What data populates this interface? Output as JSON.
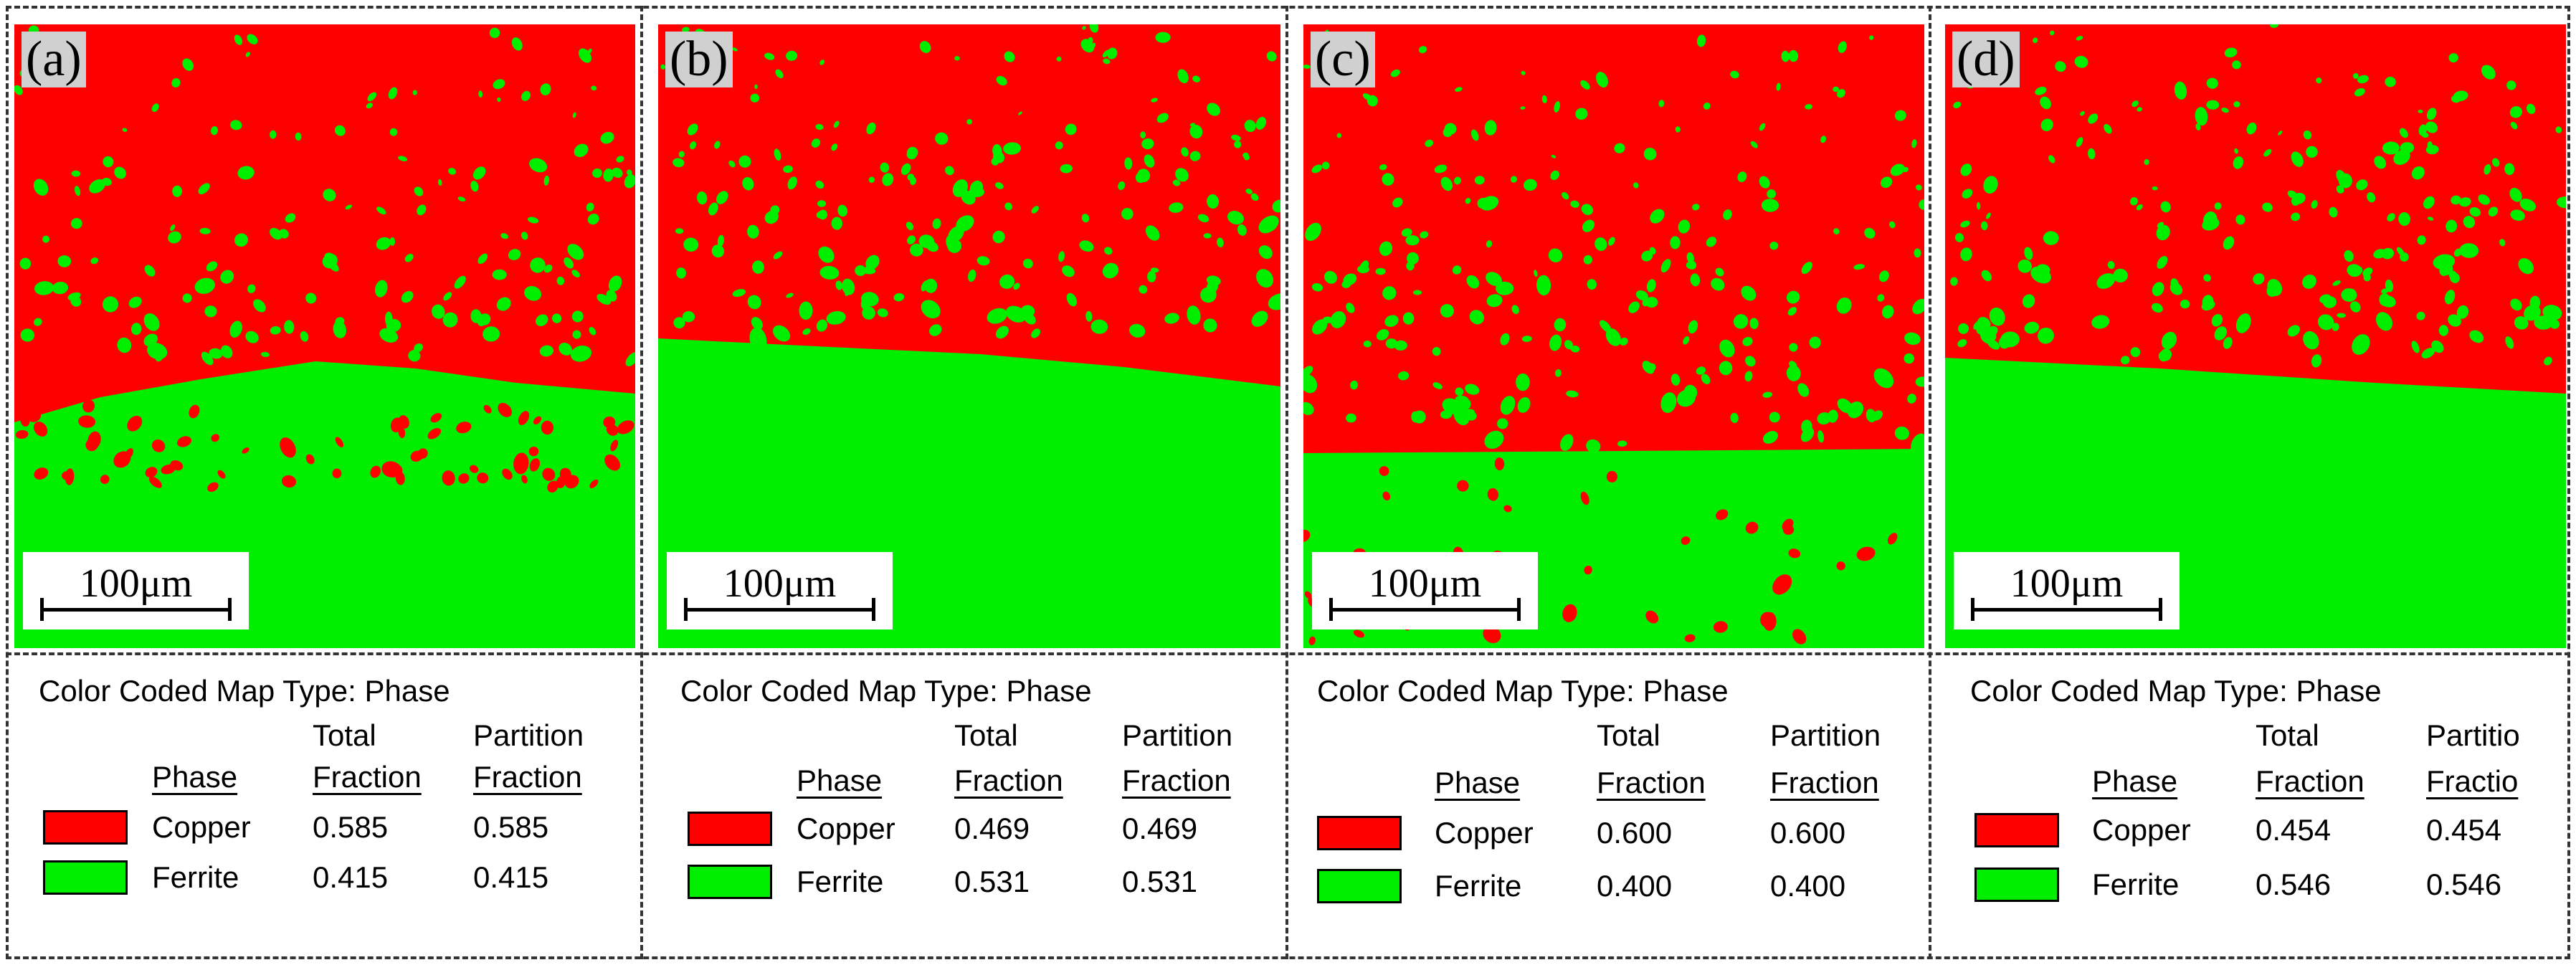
{
  "colors": {
    "copper": "#ff0000",
    "ferrite": "#00ee00"
  },
  "panels": [
    {
      "label": "(a)",
      "scale": "100μm",
      "legend_title": "Color Coded Map Type: Phase",
      "headers": {
        "phase": "Phase",
        "total1": "Total",
        "total2": "Fraction",
        "part1": "Partition",
        "part2": "Fraction"
      },
      "rows": [
        {
          "phase": "Copper",
          "total": "0.585",
          "partition": "0.585"
        },
        {
          "phase": "Ferrite",
          "total": "0.415",
          "partition": "0.415"
        }
      ]
    },
    {
      "label": "(b)",
      "scale": "100μm",
      "legend_title": "Color Coded Map Type: Phase",
      "headers": {
        "phase": "Phase",
        "total1": "Total",
        "total2": "Fraction",
        "part1": "Partition",
        "part2": "Fraction"
      },
      "rows": [
        {
          "phase": "Copper",
          "total": "0.469",
          "partition": "0.469"
        },
        {
          "phase": "Ferrite",
          "total": "0.531",
          "partition": "0.531"
        }
      ]
    },
    {
      "label": "(c)",
      "scale": "100μm",
      "legend_title": "Color Coded Map Type: Phase",
      "headers": {
        "phase": "Phase",
        "total1": "Total",
        "total2": "Fraction",
        "part1": "Partition",
        "part2": "Fraction"
      },
      "rows": [
        {
          "phase": "Copper",
          "total": "0.600",
          "partition": "0.600"
        },
        {
          "phase": "Ferrite",
          "total": "0.400",
          "partition": "0.400"
        }
      ]
    },
    {
      "label": "(d)",
      "scale": "100μm",
      "legend_title": "Color Coded Map Type: Phase",
      "headers": {
        "phase": "Phase",
        "total1": "Total",
        "total2": "Fraction",
        "part1": "Partitio",
        "part2": "Fractio"
      },
      "rows": [
        {
          "phase": "Copper",
          "total": "0.454",
          "partition": "0.454"
        },
        {
          "phase": "Ferrite",
          "total": "0.546",
          "partition": "0.546"
        }
      ]
    }
  ]
}
